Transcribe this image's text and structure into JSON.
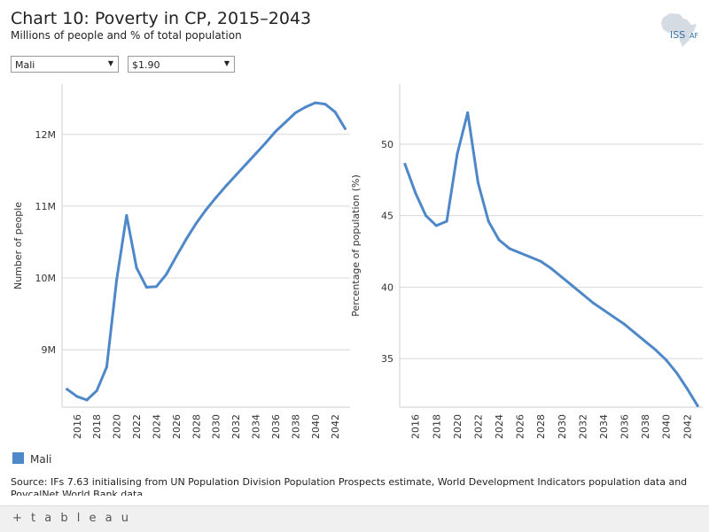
{
  "header": {
    "title": "Chart 10: Poverty in CP, 2015–2043",
    "subtitle": "Millions of people and % of total population",
    "logo_text": "ISS",
    "logo_suffix": "AF"
  },
  "filters": {
    "country": "Mali",
    "poverty_line": "$1.90"
  },
  "chart_data": [
    {
      "type": "line",
      "ylabel": "Number of people",
      "xlabel": "",
      "ylim": [
        8.2,
        12.7
      ],
      "yticks": [
        9,
        10,
        11,
        12
      ],
      "ytick_labels": [
        "9M",
        "10M",
        "11M",
        "12M"
      ],
      "xlim": [
        2014.5,
        2043.5
      ],
      "xticks": [
        2016,
        2018,
        2020,
        2022,
        2024,
        2026,
        2028,
        2030,
        2032,
        2034,
        2036,
        2038,
        2040,
        2042
      ],
      "xtick_labels": [
        "2016",
        "2018",
        "2020",
        "2022",
        "2024",
        "2026",
        "2028",
        "2030",
        "2032",
        "2034",
        "2036",
        "2038",
        "2040",
        "2042"
      ],
      "grid": true,
      "color": "#4e88c9",
      "series": [
        {
          "name": "Mali",
          "x": [
            2015,
            2016,
            2017,
            2018,
            2019,
            2020,
            2021,
            2022,
            2023,
            2024,
            2025,
            2026,
            2027,
            2028,
            2029,
            2030,
            2031,
            2032,
            2033,
            2034,
            2035,
            2036,
            2037,
            2038,
            2039,
            2040,
            2041,
            2042,
            2043
          ],
          "values": [
            8.45,
            8.35,
            8.3,
            8.43,
            8.76,
            9.97,
            10.87,
            10.14,
            9.87,
            9.88,
            10.05,
            10.3,
            10.54,
            10.76,
            10.95,
            11.12,
            11.28,
            11.43,
            11.58,
            11.73,
            11.88,
            12.04,
            12.17,
            12.3,
            12.38,
            12.44,
            12.42,
            12.31,
            12.08
          ]
        }
      ]
    },
    {
      "type": "line",
      "ylabel": "Percentage of population (%)",
      "xlabel": "",
      "ylim": [
        31.6,
        54.2
      ],
      "yticks": [
        35,
        40,
        45,
        50
      ],
      "ytick_labels": [
        "35",
        "40",
        "45",
        "50"
      ],
      "xlim": [
        2014.5,
        2043.5
      ],
      "xticks": [
        2016,
        2018,
        2020,
        2022,
        2024,
        2026,
        2028,
        2030,
        2032,
        2034,
        2036,
        2038,
        2040,
        2042
      ],
      "xtick_labels": [
        "2016",
        "2018",
        "2020",
        "2022",
        "2024",
        "2026",
        "2028",
        "2030",
        "2032",
        "2034",
        "2036",
        "2038",
        "2040",
        "2042"
      ],
      "grid": true,
      "color": "#4e88c9",
      "series": [
        {
          "name": "Mali",
          "x": [
            2015,
            2016,
            2017,
            2018,
            2019,
            2020,
            2021,
            2022,
            2023,
            2024,
            2025,
            2026,
            2027,
            2028,
            2029,
            2030,
            2031,
            2032,
            2033,
            2034,
            2035,
            2036,
            2037,
            2038,
            2039,
            2040,
            2041,
            2042,
            2043
          ],
          "values": [
            48.6,
            46.6,
            45.0,
            44.3,
            44.6,
            49.3,
            52.2,
            47.3,
            44.6,
            43.3,
            42.7,
            42.4,
            42.1,
            41.8,
            41.3,
            40.7,
            40.1,
            39.5,
            38.9,
            38.4,
            37.9,
            37.4,
            36.8,
            36.2,
            35.6,
            34.9,
            34.0,
            32.9,
            31.7
          ]
        }
      ]
    }
  ],
  "legend": {
    "label": "Mali",
    "color": "#4e88c9"
  },
  "source": "Source: IFs 7.63 initialising from UN Population Division Population Prospects estimate, World Development Indicators population data and PovcalNet World Bank data",
  "footer": {
    "brand": "+ t a b l e a u"
  }
}
